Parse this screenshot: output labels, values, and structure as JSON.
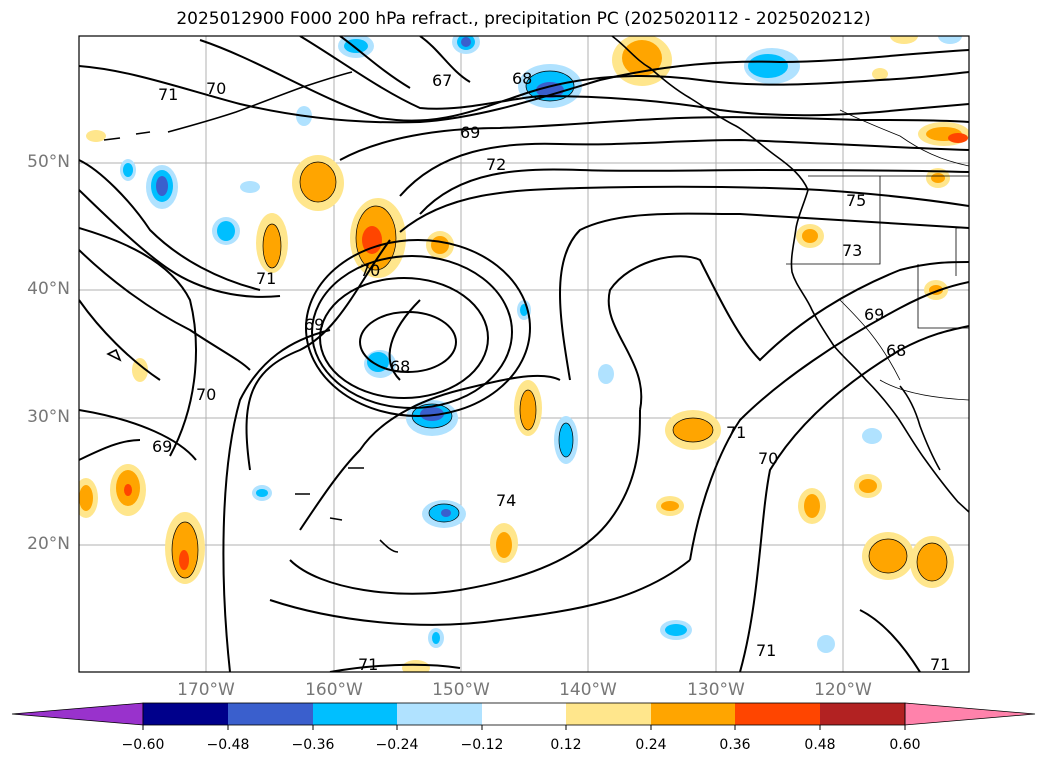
{
  "title": "2025012900 F000 200 hPa refract., precipitation PC (2025020112 - 2025020212)",
  "lon_labels": [
    "170°W",
    "160°W",
    "150°W",
    "140°W",
    "130°W",
    "120°W"
  ],
  "lat_labels": [
    "50°N",
    "40°N",
    "30°N",
    "20°N"
  ],
  "colorbar": {
    "ticks": [
      "−0.60",
      "−0.48",
      "−0.36",
      "−0.24",
      "−0.12",
      "0.12",
      "0.24",
      "0.36",
      "0.48",
      "0.60"
    ],
    "colors": {
      "under": "#9932cc",
      "neg_060_048": "#00008b",
      "neg_048_036": "#3a5fcd",
      "neg_036_024": "#00bfff",
      "neg_024_012": "#b0e2ff",
      "neutral": "#ffffff",
      "pos_012_024": "#ffe68c",
      "pos_024_036": "#ffa500",
      "pos_036_048": "#ff4500",
      "pos_048_060": "#b22222",
      "over": "#ff82ab"
    }
  },
  "contour_labels": [
    "71",
    "70",
    "67",
    "68",
    "69",
    "72",
    "75",
    "73",
    "71",
    "70",
    "69",
    "68",
    "69",
    "70",
    "69",
    "68",
    "71",
    "70",
    "74",
    "71",
    "71",
    "71"
  ]
}
